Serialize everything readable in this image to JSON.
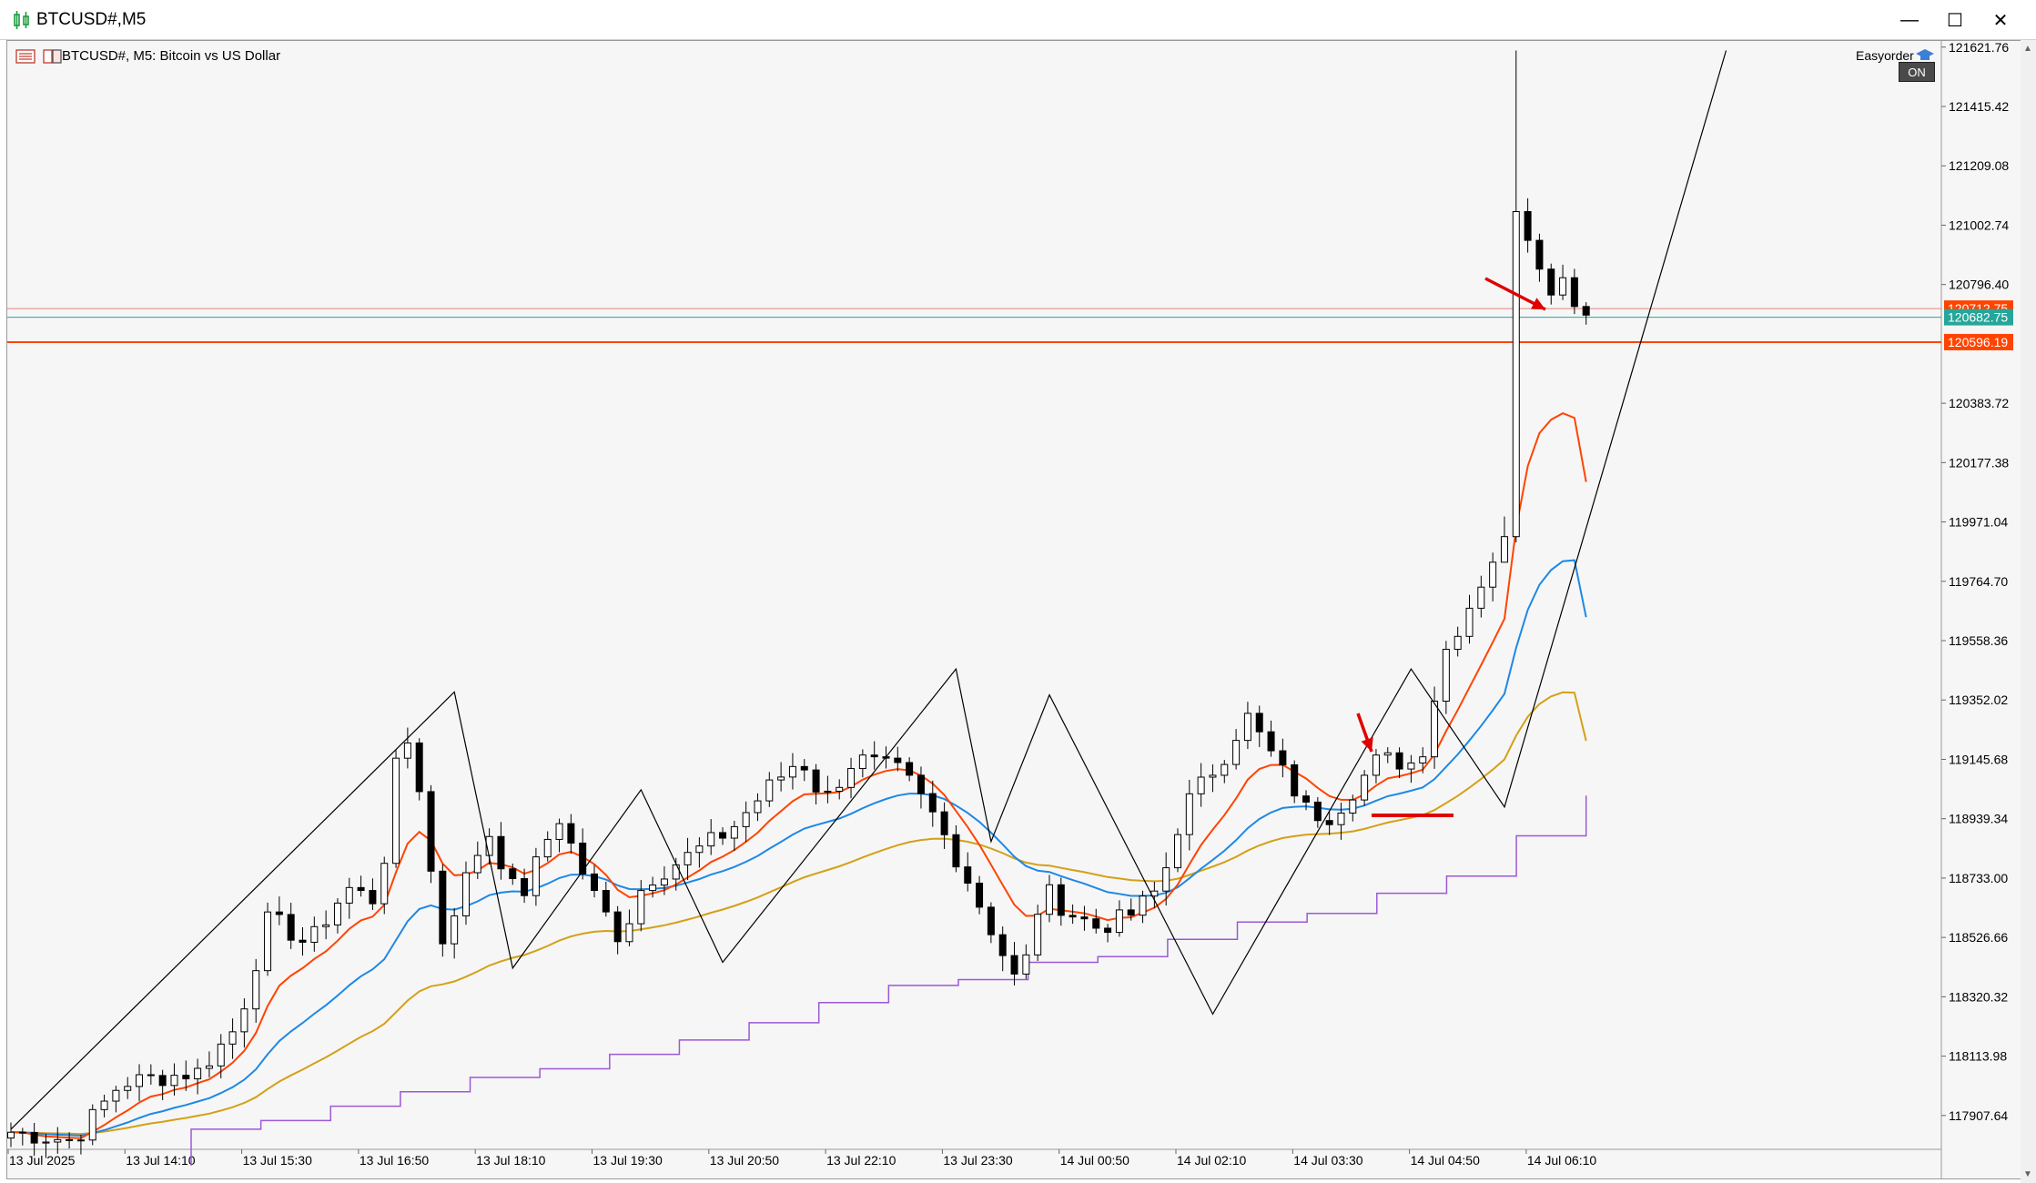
{
  "window": {
    "title": "BTCUSD#,M5",
    "minimize_glyph": "—",
    "maximize_glyph": "☐",
    "close_glyph": "✕"
  },
  "chart_header": {
    "symbol_desc": "BTCUSD#, M5:  Bitcoin vs US Dollar",
    "easyorder_label": "Easyorder",
    "on_label": "ON"
  },
  "colors": {
    "bull": "#ffffff",
    "bear": "#000000",
    "ema_fast": "#ff4400",
    "ema_mid": "#1e88e5",
    "ema_slow": "#d4a017",
    "step_line": "#9b59d6",
    "zigzag": "#000000",
    "ask_line": "#e88080",
    "bid_line": "#26a69a",
    "level_line": "#ff4400",
    "annotation": "#e00000"
  },
  "chart_data": {
    "type": "candlestick",
    "title": "BTCUSD#, M5:  Bitcoin vs US Dollar",
    "y_ticks": [
      "121621.76",
      "121415.42",
      "121209.08",
      "121002.74",
      "120796.40",
      "120383.72",
      "120177.38",
      "119971.04",
      "119764.70",
      "119558.36",
      "119352.02",
      "119145.68",
      "118939.34",
      "118733.00",
      "118526.66",
      "118320.32",
      "118113.98",
      "117907.64"
    ],
    "ylim": [
      117790,
      121640
    ],
    "x_ticks": [
      "13 Jul 2025",
      "13 Jul 14:10",
      "13 Jul 15:30",
      "13 Jul 16:50",
      "13 Jul 18:10",
      "13 Jul 19:30",
      "13 Jul 20:50",
      "13 Jul 22:10",
      "13 Jul 23:30",
      "14 Jul 00:50",
      "14 Jul 02:10",
      "14 Jul 03:30",
      "14 Jul 04:50",
      "14 Jul 06:10"
    ],
    "price_tags": [
      {
        "label": "120712.75",
        "value": 120712.75,
        "color": "#ff4400"
      },
      {
        "label": "120682.75",
        "value": 120682.75,
        "color": "#26a69a"
      },
      {
        "label": "120596.19",
        "value": 120596.19,
        "color": "#ff4400"
      }
    ],
    "horizontal_levels": [
      120712.75,
      120682.75,
      120596.19
    ],
    "candle_count": 136,
    "anchors": [
      [
        0,
        117850
      ],
      [
        8,
        117820
      ],
      [
        14,
        118020
      ],
      [
        24,
        118060
      ],
      [
        29,
        118220
      ],
      [
        33,
        118600
      ],
      [
        38,
        118500
      ],
      [
        43,
        118700
      ],
      [
        47,
        118650
      ],
      [
        50,
        119270
      ],
      [
        52,
        119100
      ],
      [
        55,
        118500
      ],
      [
        58,
        118720
      ],
      [
        61,
        118900
      ],
      [
        65,
        118650
      ],
      [
        70,
        118950
      ],
      [
        74,
        118700
      ],
      [
        78,
        118520
      ],
      [
        81,
        118720
      ],
      [
        86,
        118800
      ],
      [
        92,
        118900
      ],
      [
        97,
        119050
      ],
      [
        101,
        119150
      ],
      [
        104,
        119000
      ],
      [
        108,
        119150
      ],
      [
        114,
        119100
      ],
      [
        118,
        118950
      ],
      [
        122,
        118750
      ],
      [
        126,
        118520
      ],
      [
        129,
        118350
      ],
      [
        132,
        118700
      ],
      [
        135,
        118620
      ],
      [
        139,
        118560
      ],
      [
        143,
        118600
      ],
      [
        147,
        118700
      ],
      [
        150,
        118980
      ],
      [
        155,
        119150
      ],
      [
        158,
        119300
      ],
      [
        162,
        119130
      ],
      [
        166,
        118960
      ],
      [
        169,
        118950
      ],
      [
        172,
        119050
      ],
      [
        175,
        119150
      ],
      [
        179,
        119130
      ],
      [
        181,
        119200
      ],
      [
        183,
        119500
      ],
      [
        186,
        119650
      ],
      [
        190,
        119870
      ],
      [
        194,
        119900
      ],
      [
        196,
        121050
      ],
      [
        198,
        120900
      ],
      [
        200,
        120760
      ],
      [
        203,
        120700
      ]
    ],
    "anchor_index_scale": 0.67,
    "series": [
      {
        "name": "EMA fast",
        "values_ref": "ema_fast",
        "start": 117860,
        "end": 120110
      },
      {
        "name": "EMA mid",
        "values_ref": "ema_mid",
        "start": 117830,
        "end": 119640
      },
      {
        "name": "EMA slow",
        "values_ref": "ema_slow",
        "start": 117860,
        "end": 119210
      },
      {
        "name": "Step",
        "values_ref": "step_line"
      }
    ],
    "step_levels": [
      117860,
      117890,
      117940,
      117990,
      118040,
      118070,
      118120,
      118170,
      118230,
      118300,
      118360,
      118380,
      118440,
      118460,
      118520,
      118580,
      118610,
      118680,
      118740,
      118880,
      119020
    ],
    "zigzag": [
      {
        "x": "13 Jul 2025",
        "y": 117860
      },
      {
        "x": "13 Jul 16:50",
        "y": 119380
      },
      {
        "x": "13 Jul 17:30",
        "y": 118420
      },
      {
        "x": "13 Jul 18:40",
        "y": 119040
      },
      {
        "x": "13 Jul 19:40",
        "y": 118440
      },
      {
        "x": "13 Jul 22:00",
        "y": 119460
      },
      {
        "x": "13 Jul 22:30",
        "y": 118860
      },
      {
        "x": "13 Jul 23:00",
        "y": 119370
      },
      {
        "x": "14 Jul 00:40",
        "y": 118260
      },
      {
        "x": "14 Jul 02:50",
        "y": 119460
      },
      {
        "x": "14 Jul 03:50",
        "y": 118980
      },
      {
        "x": "14 Jul 06:15",
        "y": 121610
      }
    ]
  }
}
